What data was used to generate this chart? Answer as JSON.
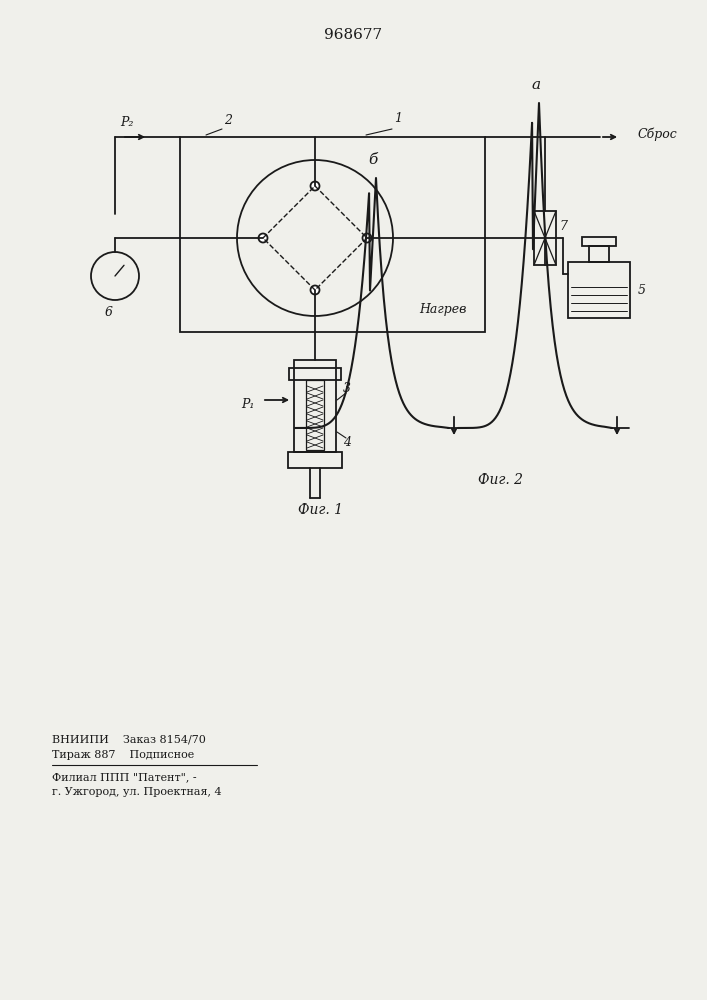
{
  "title": "968677",
  "bg_color": "#f0f0eb",
  "line_color": "#1a1a1a",
  "fig1_label": "Фиг. 1",
  "fig2_label": "Фиг. 2",
  "nagrev_label": "Нагрев",
  "sbros_label": "Сброс",
  "bottom_text1": "ВНИИПИ    Заказ 8154/70",
  "bottom_text2": "Тираж 887    Подписное",
  "bottom_text3": "Филиал ППП \"Патент\", -",
  "bottom_text4": "г. Ужгород, ул. Проектная, 4",
  "label_a": "a",
  "label_b": "б",
  "label_P1": "P₁",
  "label_P2": "P₂",
  "label_1": "1",
  "label_2": "2",
  "label_3": "3",
  "label_4": "4",
  "label_5": "5",
  "label_6": "6",
  "label_7": "7"
}
